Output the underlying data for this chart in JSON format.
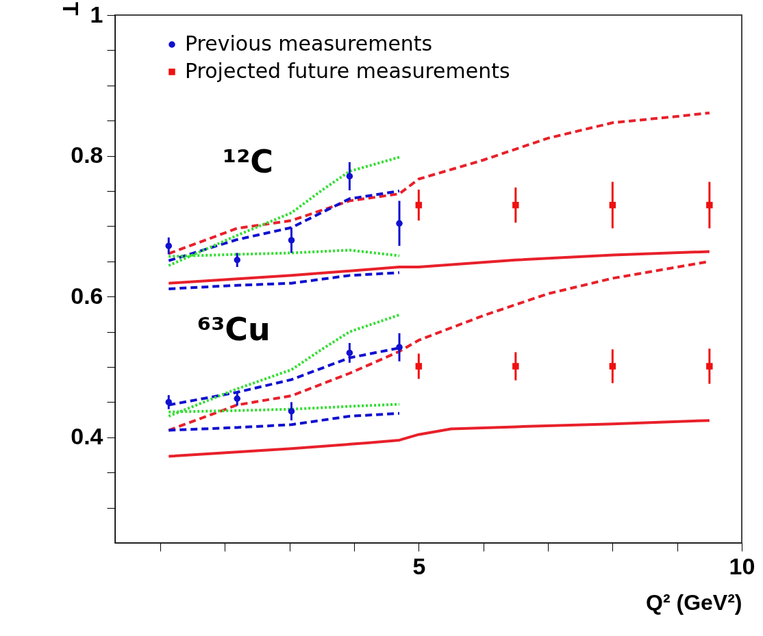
{
  "chart_data": {
    "type": "scatter",
    "xlabel": "Q² (GeV²)",
    "ylabel": "T",
    "annotations": [
      "¹²C",
      "⁶³Cu"
    ],
    "xlim": [
      0.3,
      10
    ],
    "ylim": [
      0.25,
      1
    ],
    "xticks": [
      {
        "value": 1,
        "label": null
      },
      {
        "value": 2,
        "label": null
      },
      {
        "value": 3,
        "label": null
      },
      {
        "value": 4,
        "label": null
      },
      5,
      {
        "value": 6,
        "label": null
      },
      {
        "value": 7,
        "label": null
      },
      {
        "value": 8,
        "label": null
      },
      {
        "value": 9,
        "label": null
      },
      10
    ],
    "yticks": [
      {
        "value": 0.3,
        "label": null
      },
      {
        "value": 0.35,
        "label": null
      },
      0.4,
      {
        "value": 0.45,
        "label": null
      },
      {
        "value": 0.5,
        "label": null
      },
      {
        "value": 0.55,
        "label": null
      },
      0.6,
      {
        "value": 0.65,
        "label": null
      },
      {
        "value": 0.7,
        "label": null
      },
      {
        "value": 0.75,
        "label": null
      },
      0.8,
      {
        "value": 0.85,
        "label": null
      },
      {
        "value": 0.9,
        "label": null
      },
      {
        "value": 0.95,
        "label": null
      },
      1
    ],
    "grid": false,
    "legend": "top left",
    "series": [
      {
        "type": "line",
        "color": "#e8202a",
        "line_style": "dashed",
        "x": [
          1.13,
          2.19,
          3.03,
          3.93,
          4.7,
          5.0,
          6.0,
          7.0,
          8.0,
          9.0,
          9.5
        ],
        "values": [
          0.661,
          0.697,
          0.708,
          0.736,
          0.746,
          0.767,
          0.794,
          0.825,
          0.847,
          0.856,
          0.861
        ]
      },
      {
        "type": "line",
        "color": "#e8202a",
        "line_style": "solid",
        "x": [
          1.13,
          3.03,
          4.7,
          5.0,
          6.5,
          8.0,
          9.5
        ],
        "values": [
          0.619,
          0.63,
          0.642,
          0.642,
          0.652,
          0.659,
          0.664
        ]
      },
      {
        "type": "line",
        "color": "#1010d0",
        "line_style": "dashed",
        "x": [
          1.13,
          2.19,
          3.03,
          3.93,
          4.7
        ],
        "values": [
          0.651,
          0.681,
          0.698,
          0.739,
          0.75
        ]
      },
      {
        "type": "line",
        "color": "#1010d0",
        "line_style": "dashed",
        "x": [
          1.13,
          2.19,
          3.03,
          3.93,
          4.7
        ],
        "values": [
          0.611,
          0.616,
          0.619,
          0.63,
          0.634
        ]
      },
      {
        "type": "line",
        "color": "#33dd33",
        "line_style": "dotted",
        "x": [
          1.13,
          2.19,
          3.03,
          3.5,
          3.93,
          4.7
        ],
        "values": [
          0.644,
          0.687,
          0.719,
          0.751,
          0.778,
          0.798
        ]
      },
      {
        "type": "line",
        "color": "#33dd33",
        "line_style": "dotted",
        "x": [
          1.13,
          2.19,
          3.03,
          3.93,
          4.7
        ],
        "values": [
          0.657,
          0.66,
          0.662,
          0.666,
          0.658
        ]
      },
      {
        "type": "line",
        "color": "#e8202a",
        "line_style": "dashed",
        "x": [
          1.13,
          2.19,
          3.03,
          3.93,
          4.7,
          5.0,
          6.0,
          7.0,
          8.0,
          9.0,
          9.5
        ],
        "values": [
          0.41,
          0.446,
          0.459,
          0.491,
          0.522,
          0.538,
          0.573,
          0.604,
          0.626,
          0.642,
          0.65
        ]
      },
      {
        "type": "line",
        "color": "#e8202a",
        "line_style": "solid",
        "x": [
          1.13,
          3.03,
          4.2,
          4.7,
          5.0,
          5.5,
          6.5,
          8.0,
          9.5
        ],
        "values": [
          0.373,
          0.384,
          0.392,
          0.396,
          0.404,
          0.412,
          0.415,
          0.419,
          0.424
        ]
      },
      {
        "type": "line",
        "color": "#1010d0",
        "line_style": "dashed",
        "x": [
          1.13,
          2.19,
          3.03,
          3.93,
          4.7
        ],
        "values": [
          0.446,
          0.464,
          0.482,
          0.513,
          0.527
        ]
      },
      {
        "type": "line",
        "color": "#1010d0",
        "line_style": "dashed",
        "x": [
          1.13,
          2.19,
          3.03,
          3.93,
          4.7
        ],
        "values": [
          0.41,
          0.414,
          0.418,
          0.43,
          0.434
        ]
      },
      {
        "type": "line",
        "color": "#33dd33",
        "line_style": "dotted",
        "x": [
          1.13,
          2.19,
          3.03,
          3.5,
          3.93,
          4.7
        ],
        "values": [
          0.43,
          0.469,
          0.496,
          0.525,
          0.55,
          0.574
        ]
      },
      {
        "type": "line",
        "color": "#33dd33",
        "line_style": "dotted",
        "x": [
          1.13,
          2.19,
          3.03,
          3.93,
          4.7
        ],
        "values": [
          0.436,
          0.438,
          0.44,
          0.444,
          0.447
        ]
      },
      {
        "name": "Previous measurements",
        "color": "#1010d0",
        "marker": "circle",
        "x": [
          1.13,
          2.19,
          3.03,
          3.93,
          4.7,
          1.13,
          2.19,
          3.03,
          3.93,
          4.7
        ],
        "values": [
          0.672,
          0.652,
          0.68,
          0.771,
          0.704,
          0.45,
          0.455,
          0.437,
          0.52,
          0.528
        ],
        "errors": [
          0.012,
          0.01,
          0.018,
          0.02,
          0.032,
          0.01,
          0.01,
          0.013,
          0.014,
          0.02
        ]
      },
      {
        "name": "Projected future measurements",
        "color": "#ee1111",
        "marker": "square",
        "x": [
          5,
          6.5,
          8,
          9.5,
          5,
          6.5,
          8,
          9.5
        ],
        "values": [
          0.73,
          0.73,
          0.73,
          0.73,
          0.501,
          0.501,
          0.501,
          0.501
        ],
        "errors": [
          0.022,
          0.025,
          0.033,
          0.033,
          0.018,
          0.02,
          0.024,
          0.025
        ]
      }
    ]
  }
}
